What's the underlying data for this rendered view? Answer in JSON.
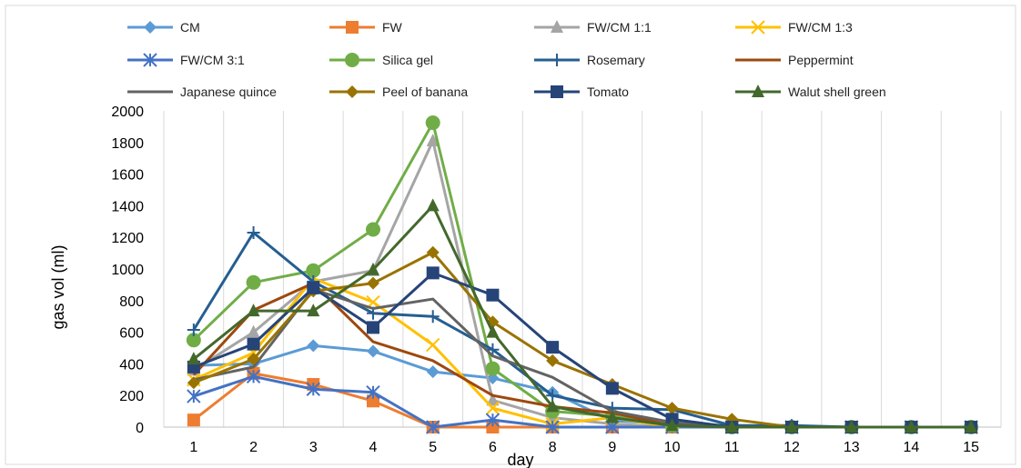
{
  "chart_data": {
    "type": "line",
    "title": "",
    "xlabel": "day",
    "ylabel": "gas vol (ml)",
    "ylim": [
      0,
      2000
    ],
    "y_ticks": [
      0,
      200,
      400,
      600,
      800,
      1000,
      1200,
      1400,
      1600,
      1800,
      2000
    ],
    "grid": "vertical",
    "legend_position": "top",
    "x": [
      1,
      2,
      3,
      4,
      5,
      6,
      8,
      9,
      10,
      11,
      12,
      13,
      14,
      15
    ],
    "series": [
      {
        "name": "CM",
        "color": "#5B9BD5",
        "marker": "diamond",
        "values": [
          390,
          400,
          515,
          480,
          350,
          310,
          220,
          40,
          20,
          10,
          5,
          0,
          0,
          0
        ]
      },
      {
        "name": "FW",
        "color": "#ED7D31",
        "marker": "square",
        "values": [
          45,
          340,
          270,
          165,
          0,
          0,
          0,
          0,
          0,
          0,
          0,
          0,
          0,
          0
        ]
      },
      {
        "name": "FW/CM 1:1",
        "color": "#A5A5A5",
        "marker": "triangle",
        "values": [
          360,
          600,
          920,
          990,
          1810,
          170,
          60,
          20,
          0,
          0,
          0,
          0,
          0,
          0
        ]
      },
      {
        "name": "FW/CM 1:3",
        "color": "#FFC000",
        "marker": "x",
        "values": [
          300,
          470,
          940,
          790,
          520,
          120,
          20,
          60,
          0,
          0,
          0,
          0,
          0,
          0
        ]
      },
      {
        "name": "FW/CM 3:1",
        "color": "#4472C4",
        "marker": "star",
        "values": [
          195,
          320,
          240,
          220,
          0,
          45,
          0,
          0,
          0,
          0,
          0,
          0,
          0,
          0
        ]
      },
      {
        "name": "Silica gel",
        "color": "#70AD47",
        "marker": "circle",
        "values": [
          550,
          915,
          990,
          1250,
          1925,
          370,
          100,
          70,
          10,
          0,
          0,
          0,
          0,
          0
        ]
      },
      {
        "name": "Rosemary",
        "color": "#255E91",
        "marker": "plus",
        "values": [
          615,
          1230,
          920,
          720,
          700,
          490,
          200,
          120,
          110,
          10,
          10,
          0,
          0,
          0
        ]
      },
      {
        "name": "Peppermint",
        "color": "#9E480E",
        "marker": "none",
        "values": [
          330,
          740,
          910,
          540,
          420,
          200,
          130,
          90,
          10,
          0,
          0,
          0,
          0,
          0
        ]
      },
      {
        "name": "Japanese quince",
        "color": "#636363",
        "marker": "none",
        "values": [
          300,
          380,
          870,
          750,
          810,
          450,
          315,
          100,
          30,
          0,
          0,
          0,
          0,
          0
        ]
      },
      {
        "name": "Peel of banana",
        "color": "#997300",
        "marker": "diamond",
        "values": [
          280,
          430,
          860,
          910,
          1105,
          665,
          420,
          270,
          120,
          50,
          0,
          0,
          0,
          0
        ]
      },
      {
        "name": "Tomato",
        "color": "#264478",
        "marker": "square",
        "values": [
          380,
          525,
          880,
          630,
          975,
          835,
          505,
          245,
          50,
          0,
          0,
          0,
          0,
          0
        ]
      },
      {
        "name": "Walut shell green",
        "color": "#43682B",
        "marker": "triangle",
        "values": [
          430,
          735,
          735,
          995,
          1400,
          600,
          130,
          60,
          10,
          0,
          0,
          0,
          0,
          0
        ]
      }
    ]
  }
}
